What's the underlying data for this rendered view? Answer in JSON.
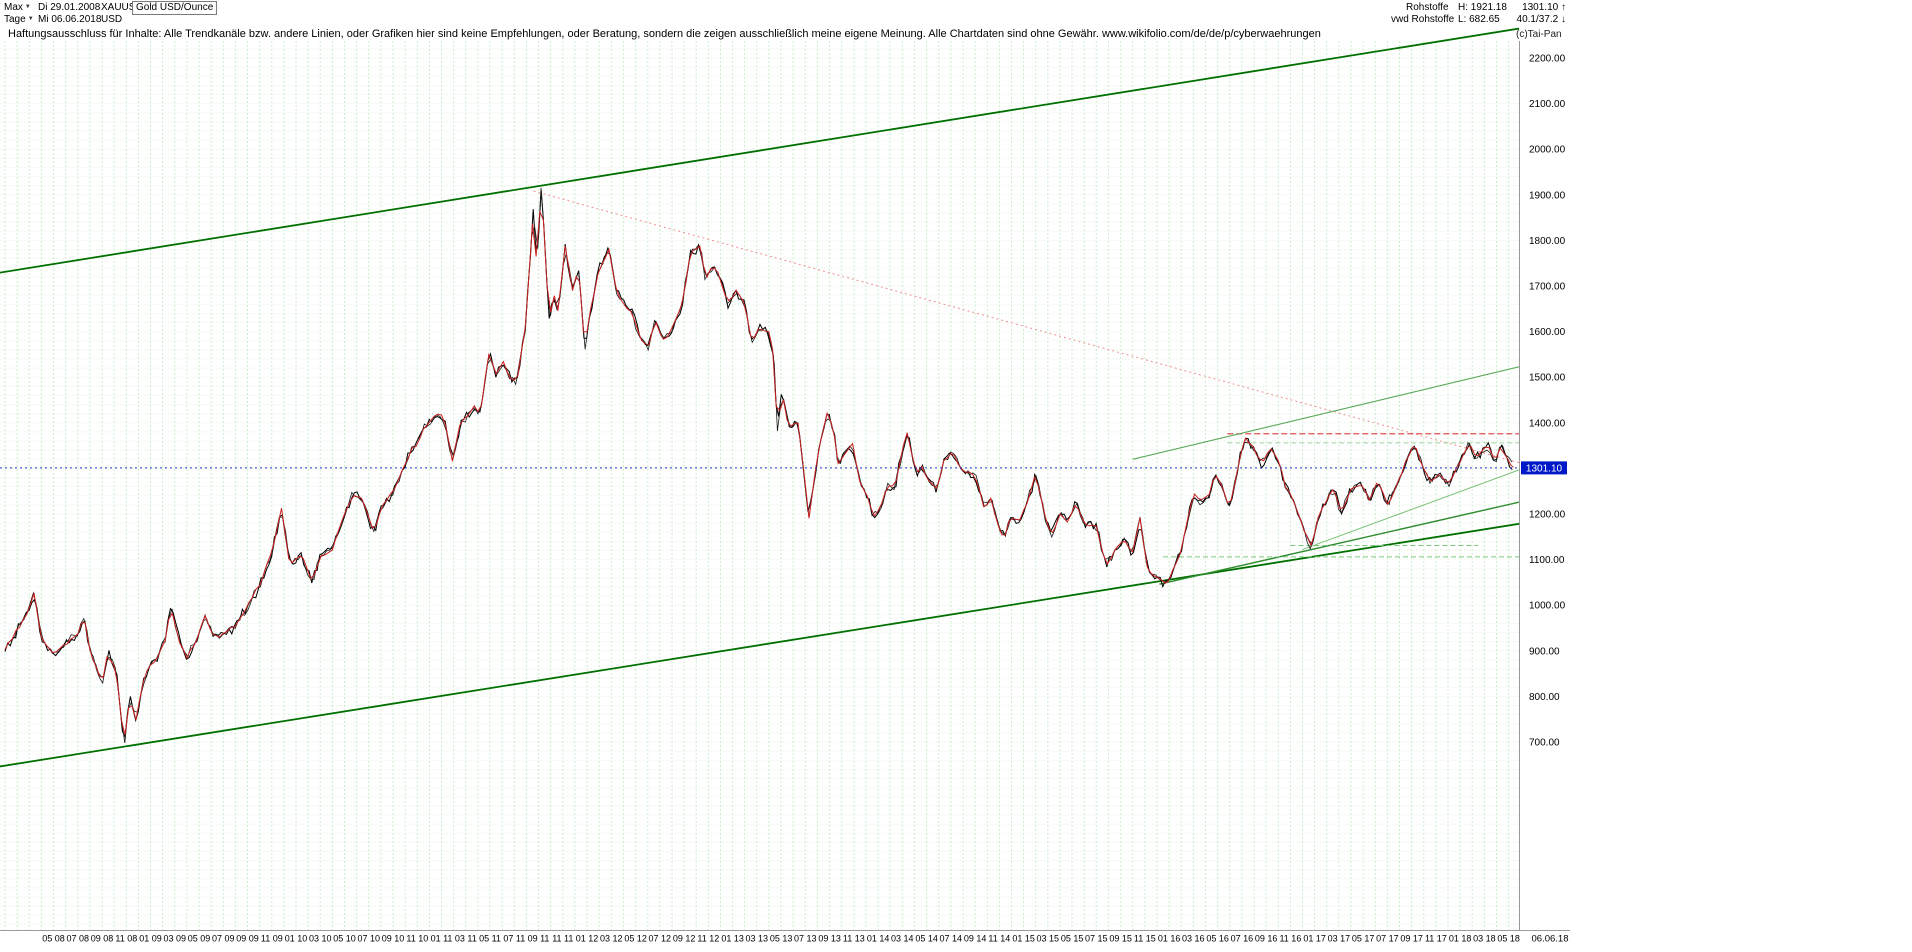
{
  "toolbar": {
    "range_selector": "Max",
    "start_date": "Di 29.01.2008",
    "symbol": "XAUUSD",
    "instrument": "Gold USD/Ounce",
    "period_selector": "Tage",
    "end_date": "Mi 06.06.2018",
    "currency": "USD",
    "market": "Rohstoffe",
    "high_label": "H: 1921.18",
    "last_price": "1301.10 ↑",
    "feed": "vwd Rohstoffe",
    "low_label": "L: 682.65",
    "stats": "40.1/37.2 ↓"
  },
  "disclaimer": "Haftungsausschluss für Inhalte: Alle Trendkanäle bzw. andere Linien, oder Grafiken hier sind keine Empfehlungen, oder Beratung, sondern die zeigen ausschließlich meine eigene Meinung. Alle Chartdaten sind ohne Gewähr.  www.wikifolio.com/de/de/p/cyberwaehrungen",
  "watermark": "(c)Tai-Pan",
  "chart_data": {
    "type": "line",
    "title": "Gold USD/Ounce (XAUUSD), Tage, Max 29.01.2008 - 06.06.2018",
    "ylabel": "USD",
    "high": 1921.18,
    "low": 682.65,
    "last": 1301.1,
    "ylim": [
      700,
      2200
    ],
    "y_ticks": [
      2200,
      2100,
      2000,
      1900,
      1800,
      1700,
      1600,
      1500,
      1400,
      1300,
      1200,
      1100,
      1000,
      900,
      800,
      700
    ],
    "grid": {
      "h_step_price": 20,
      "v_step_months": 1,
      "grid_on": true
    },
    "x_tick_labels": [
      "05 08",
      "07 08",
      "09 08",
      "11 08",
      "01 09",
      "03 09",
      "05 09",
      "07 09",
      "09 09",
      "11 09",
      "01 10",
      "03 10",
      "05 10",
      "07 10",
      "09 10",
      "11 10",
      "01 11",
      "03 11",
      "05 11",
      "07 11",
      "09 11",
      "11 11",
      "01 12",
      "03 12",
      "05 12",
      "07 12",
      "09 12",
      "11 12",
      "01 13",
      "03 13",
      "05 13",
      "07 13",
      "09 13",
      "11 13",
      "01 14",
      "03 14",
      "05 14",
      "07 14",
      "09 14",
      "11 14",
      "01 15",
      "03 15",
      "05 15",
      "07 15",
      "09 15",
      "11 15",
      "01 16",
      "03 16",
      "05 16",
      "07 16",
      "09 16",
      "11 16",
      "01 17",
      "03 17",
      "05 17",
      "07 17",
      "09 17",
      "11 17",
      "01 18",
      "03 18",
      "05 18"
    ],
    "x_axis_end_label": "06.06.18",
    "series_note": "Anchor points [monthIndex,priceUSD] read from chart; month 0 = Jan 2008, month 124.4 = 06.06.2018",
    "series_anchors_month_price": [
      [
        0,
        905
      ],
      [
        1,
        945
      ],
      [
        2,
        990
      ],
      [
        2.4,
        1025
      ],
      [
        3,
        930
      ],
      [
        4,
        890
      ],
      [
        5,
        915
      ],
      [
        6,
        935
      ],
      [
        6.5,
        975
      ],
      [
        7,
        900
      ],
      [
        8,
        830
      ],
      [
        8.5,
        895
      ],
      [
        9.2,
        855
      ],
      [
        9.8,
        692
      ],
      [
        10.3,
        800
      ],
      [
        10.8,
        745
      ],
      [
        11.3,
        820
      ],
      [
        11.8,
        860
      ],
      [
        12.5,
        885
      ],
      [
        13.2,
        925
      ],
      [
        13.7,
        995
      ],
      [
        14.4,
        920
      ],
      [
        15,
        885
      ],
      [
        15.8,
        925
      ],
      [
        16.5,
        975
      ],
      [
        17.2,
        930
      ],
      [
        18,
        935
      ],
      [
        19,
        955
      ],
      [
        20,
        998
      ],
      [
        21,
        1045
      ],
      [
        22,
        1115
      ],
      [
        22.8,
        1212
      ],
      [
        23.5,
        1088
      ],
      [
        24.4,
        1112
      ],
      [
        25.3,
        1052
      ],
      [
        26,
        1105
      ],
      [
        27,
        1125
      ],
      [
        28,
        1198
      ],
      [
        28.7,
        1244
      ],
      [
        29.5,
        1232
      ],
      [
        30.4,
        1158
      ],
      [
        31,
        1212
      ],
      [
        32,
        1248
      ],
      [
        33,
        1308
      ],
      [
        33.5,
        1342
      ],
      [
        34,
        1352
      ],
      [
        34.5,
        1383
      ],
      [
        35,
        1402
      ],
      [
        35.6,
        1422
      ],
      [
        36.2,
        1412
      ],
      [
        36.9,
        1318
      ],
      [
        37.6,
        1402
      ],
      [
        38.2,
        1418
      ],
      [
        38.7,
        1434
      ],
      [
        39.2,
        1420
      ],
      [
        39.9,
        1552
      ],
      [
        40.5,
        1508
      ],
      [
        41.1,
        1532
      ],
      [
        41.7,
        1498
      ],
      [
        42.2,
        1488
      ],
      [
        42.9,
        1608
      ],
      [
        43.3,
        1758
      ],
      [
        43.6,
        1878
      ],
      [
        43.85,
        1732
      ],
      [
        44.2,
        1916
      ],
      [
        44.55,
        1788
      ],
      [
        44.85,
        1622
      ],
      [
        45.3,
        1678
      ],
      [
        45.6,
        1642
      ],
      [
        46.2,
        1788
      ],
      [
        46.8,
        1692
      ],
      [
        47.3,
        1744
      ],
      [
        47.8,
        1562
      ],
      [
        48.3,
        1648
      ],
      [
        49,
        1738
      ],
      [
        49.8,
        1778
      ],
      [
        50.5,
        1682
      ],
      [
        51.1,
        1658
      ],
      [
        51.7,
        1642
      ],
      [
        52.4,
        1586
      ],
      [
        53,
        1562
      ],
      [
        53.6,
        1622
      ],
      [
        54.3,
        1582
      ],
      [
        55,
        1602
      ],
      [
        55.8,
        1658
      ],
      [
        56.5,
        1768
      ],
      [
        57.3,
        1788
      ],
      [
        57.8,
        1712
      ],
      [
        58.4,
        1748
      ],
      [
        59,
        1714
      ],
      [
        59.6,
        1662
      ],
      [
        60.3,
        1688
      ],
      [
        61,
        1664
      ],
      [
        61.6,
        1576
      ],
      [
        62.2,
        1608
      ],
      [
        63,
        1598
      ],
      [
        63.4,
        1552
      ],
      [
        63.7,
        1382
      ],
      [
        64.1,
        1468
      ],
      [
        64.6,
        1392
      ],
      [
        65.4,
        1402
      ],
      [
        65.9,
        1288
      ],
      [
        66.3,
        1192
      ],
      [
        67,
        1328
      ],
      [
        67.8,
        1418
      ],
      [
        68.3,
        1392
      ],
      [
        68.7,
        1312
      ],
      [
        69.3,
        1332
      ],
      [
        69.9,
        1352
      ],
      [
        70.5,
        1272
      ],
      [
        71.1,
        1242
      ],
      [
        71.6,
        1196
      ],
      [
        72.2,
        1212
      ],
      [
        72.7,
        1258
      ],
      [
        73.4,
        1262
      ],
      [
        74,
        1338
      ],
      [
        74.4,
        1382
      ],
      [
        75.1,
        1292
      ],
      [
        75.6,
        1302
      ],
      [
        76.2,
        1272
      ],
      [
        76.9,
        1252
      ],
      [
        77.4,
        1318
      ],
      [
        78.2,
        1332
      ],
      [
        79,
        1292
      ],
      [
        80,
        1288
      ],
      [
        80.7,
        1216
      ],
      [
        81.3,
        1232
      ],
      [
        82,
        1168
      ],
      [
        82.4,
        1146
      ],
      [
        83,
        1198
      ],
      [
        83.6,
        1182
      ],
      [
        84.4,
        1232
      ],
      [
        85,
        1288
      ],
      [
        85.7,
        1202
      ],
      [
        86.3,
        1152
      ],
      [
        87,
        1198
      ],
      [
        87.6,
        1182
      ],
      [
        88.3,
        1224
      ],
      [
        89,
        1182
      ],
      [
        90,
        1172
      ],
      [
        90.8,
        1088
      ],
      [
        91.5,
        1118
      ],
      [
        92.3,
        1142
      ],
      [
        93,
        1116
      ],
      [
        93.6,
        1188
      ],
      [
        94.3,
        1068
      ],
      [
        95,
        1062
      ],
      [
        95.9,
        1048
      ],
      [
        96.5,
        1092
      ],
      [
        97,
        1118
      ],
      [
        97.6,
        1202
      ],
      [
        98.1,
        1242
      ],
      [
        98.6,
        1226
      ],
      [
        99.3,
        1242
      ],
      [
        99.8,
        1292
      ],
      [
        100.4,
        1262
      ],
      [
        101,
        1212
      ],
      [
        101.8,
        1318
      ],
      [
        102.3,
        1366
      ],
      [
        103,
        1342
      ],
      [
        103.6,
        1312
      ],
      [
        104.4,
        1342
      ],
      [
        105,
        1316
      ],
      [
        105.6,
        1262
      ],
      [
        106.3,
        1226
      ],
      [
        107,
        1172
      ],
      [
        107.7,
        1128
      ],
      [
        108.3,
        1192
      ],
      [
        109,
        1232
      ],
      [
        109.6,
        1256
      ],
      [
        110.2,
        1202
      ],
      [
        111,
        1252
      ],
      [
        111.8,
        1266
      ],
      [
        112.5,
        1232
      ],
      [
        113.2,
        1272
      ],
      [
        114,
        1222
      ],
      [
        114.8,
        1262
      ],
      [
        115.6,
        1322
      ],
      [
        116.3,
        1352
      ],
      [
        116.8,
        1312
      ],
      [
        117.5,
        1272
      ],
      [
        118.3,
        1286
      ],
      [
        119,
        1266
      ],
      [
        119.8,
        1302
      ],
      [
        120.4,
        1342
      ],
      [
        120.8,
        1358
      ],
      [
        121.3,
        1322
      ],
      [
        122.3,
        1352
      ],
      [
        122.8,
        1314
      ],
      [
        123.4,
        1348
      ],
      [
        124,
        1316
      ],
      [
        124.4,
        1301
      ]
    ],
    "trendlines": [
      {
        "name": "upper-channel",
        "color": "#007000",
        "width": 1.8,
        "dash": "",
        "from": [
          -0.5,
          1729
        ],
        "to": [
          125.2,
          2266
        ]
      },
      {
        "name": "lower-channel",
        "color": "#007000",
        "width": 1.8,
        "dash": "",
        "from": [
          -0.5,
          646
        ],
        "to": [
          125.2,
          1180
        ]
      },
      {
        "name": "downtrend-dotted",
        "color": "#f09090",
        "width": 1,
        "dash": "2,3",
        "from": [
          43.6,
          1908
        ],
        "to": [
          125.2,
          1310
        ]
      },
      {
        "name": "resistance-dashed",
        "color": "#e05050",
        "width": 1.3,
        "dash": "6,3",
        "from": [
          100.8,
          1376
        ],
        "to": [
          125.2,
          1376
        ]
      },
      {
        "name": "minor-dashed-1356",
        "color": "#9ed29e",
        "width": 1,
        "dash": "5,3",
        "from": [
          100.8,
          1356
        ],
        "to": [
          125.2,
          1356
        ]
      },
      {
        "name": "rising-wedge-upper",
        "color": "#58a858",
        "width": 1.1,
        "dash": "",
        "from": [
          93,
          1320
        ],
        "to": [
          125.2,
          1525
        ]
      },
      {
        "name": "rising-support",
        "color": "#2e8b2e",
        "width": 1.4,
        "dash": "",
        "from": [
          95.2,
          1046
        ],
        "to": [
          125.2,
          1228
        ]
      },
      {
        "name": "rising-inner",
        "color": "#79c279",
        "width": 1,
        "dash": "",
        "from": [
          107,
          1122
        ],
        "to": [
          125.2,
          1300
        ]
      },
      {
        "name": "support-dashed-a",
        "color": "#7cc77c",
        "width": 1,
        "dash": "5,3",
        "from": [
          106,
          1131
        ],
        "to": [
          121.5,
          1131
        ]
      },
      {
        "name": "support-dashed-b",
        "color": "#7cc77c",
        "width": 1,
        "dash": "5,3",
        "from": [
          95.5,
          1106
        ],
        "to": [
          125.2,
          1106
        ]
      }
    ],
    "current_price_line": {
      "level": 1301.1,
      "label": "1301.10",
      "color": "#2233cc",
      "label_bg": "#0018c8"
    }
  }
}
